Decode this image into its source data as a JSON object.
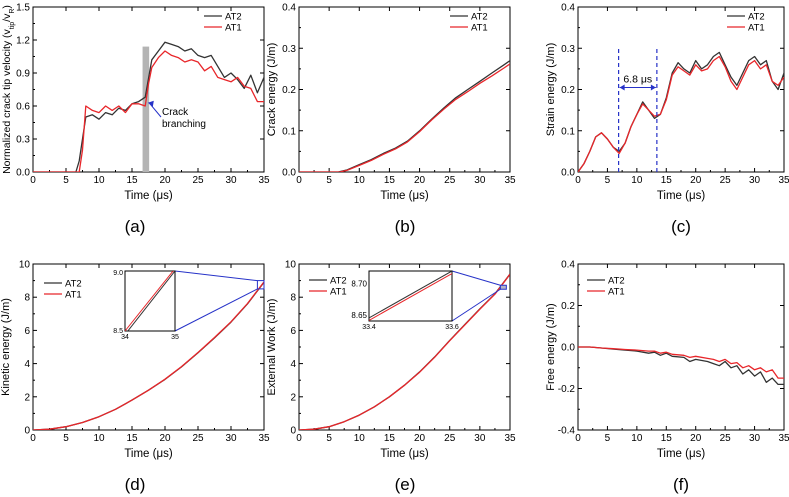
{
  "figure": {
    "colors": {
      "AT2": "#333333",
      "AT1": "#e8262a",
      "zoom_box": "#2632c8",
      "branch_bar": "#b4b4b4",
      "annotation": "#2632c8"
    },
    "series_names": [
      "AT2",
      "AT1"
    ]
  },
  "chart_data": [
    {
      "id": "a",
      "panel_label": "(a)",
      "type": "line",
      "xlabel": "Time (μs)",
      "ylabel": "Normalized crack tip velocity (v_tip/v_R)",
      "xlim": [
        0,
        35
      ],
      "ylim": [
        0,
        1.5
      ],
      "xticks": [
        0,
        5,
        10,
        15,
        20,
        25,
        30,
        35
      ],
      "yticks": [
        0,
        0.3,
        0.6,
        0.9,
        1.2,
        1.5
      ],
      "ytick_labels": [
        "0.0",
        "0.3",
        "0.6",
        "0.9",
        "1.2",
        "1.5"
      ],
      "legend": "top-right",
      "annotation": {
        "text_lines": [
          "Crack",
          "branching"
        ],
        "x_range": [
          16.6,
          17.6
        ],
        "bar_top": 1.14,
        "arrow_to": [
          17.4,
          0.63
        ]
      },
      "series": [
        {
          "name": "AT2",
          "x": [
            0,
            6.5,
            7.0,
            7.5,
            8,
            9,
            10,
            11,
            12,
            13,
            14,
            15,
            16,
            17,
            17.5,
            18,
            19,
            20,
            21,
            22,
            23,
            24,
            25,
            26,
            27,
            28,
            29,
            30,
            31,
            32,
            33,
            34,
            35
          ],
          "y": [
            0,
            0,
            0.1,
            0.3,
            0.5,
            0.52,
            0.48,
            0.54,
            0.52,
            0.58,
            0.56,
            0.62,
            0.64,
            0.68,
            0.85,
            1.02,
            1.1,
            1.18,
            1.16,
            1.14,
            1.1,
            1.12,
            1.06,
            1.04,
            1.06,
            0.96,
            0.86,
            0.9,
            0.84,
            0.76,
            0.88,
            0.72,
            0.86
          ]
        },
        {
          "name": "AT1",
          "x": [
            0,
            7.0,
            7.5,
            8,
            9,
            10,
            11,
            12,
            13,
            14,
            15,
            16,
            17,
            17.5,
            18,
            19,
            20,
            21,
            22,
            23,
            24,
            25,
            26,
            27,
            28,
            29,
            30,
            31,
            32,
            33,
            34,
            35
          ],
          "y": [
            0,
            0,
            0.2,
            0.6,
            0.56,
            0.54,
            0.6,
            0.56,
            0.6,
            0.54,
            0.62,
            0.62,
            0.6,
            0.8,
            0.95,
            1.04,
            1.1,
            1.06,
            1.04,
            1.0,
            1.02,
            1.0,
            0.92,
            0.96,
            0.86,
            0.84,
            0.82,
            0.86,
            0.78,
            0.76,
            0.64,
            0.64
          ]
        }
      ]
    },
    {
      "id": "b",
      "panel_label": "(b)",
      "type": "line",
      "xlabel": "Time (μs)",
      "ylabel": "Crack energy (J/m)",
      "xlim": [
        0,
        35
      ],
      "ylim": [
        0,
        0.4
      ],
      "xticks": [
        0,
        5,
        10,
        15,
        20,
        25,
        30,
        35
      ],
      "yticks": [
        0,
        0.1,
        0.2,
        0.3,
        0.4
      ],
      "ytick_labels": [
        "0.0",
        "0.1",
        "0.2",
        "0.3",
        "0.4"
      ],
      "legend": "top-right",
      "series": [
        {
          "name": "AT2",
          "x": [
            0,
            6.5,
            8,
            10,
            12,
            14,
            16,
            18,
            20,
            22,
            24,
            26,
            28,
            30,
            32,
            34,
            35
          ],
          "y": [
            0,
            0,
            0.005,
            0.018,
            0.03,
            0.045,
            0.058,
            0.075,
            0.1,
            0.128,
            0.155,
            0.18,
            0.2,
            0.22,
            0.24,
            0.26,
            0.27
          ]
        },
        {
          "name": "AT1",
          "x": [
            0,
            6.8,
            8,
            10,
            12,
            14,
            16,
            18,
            20,
            22,
            24,
            26,
            28,
            30,
            32,
            34,
            35
          ],
          "y": [
            0,
            0,
            0.004,
            0.016,
            0.028,
            0.043,
            0.056,
            0.073,
            0.098,
            0.126,
            0.152,
            0.176,
            0.195,
            0.215,
            0.233,
            0.252,
            0.262
          ]
        }
      ]
    },
    {
      "id": "c",
      "panel_label": "(c)",
      "type": "line",
      "xlabel": "Time (μs)",
      "ylabel": "Strain energy (J/m)",
      "xlim": [
        0,
        35
      ],
      "ylim": [
        0,
        0.4
      ],
      "xticks": [
        0,
        5,
        10,
        15,
        20,
        25,
        30,
        35
      ],
      "yticks": [
        0,
        0.1,
        0.2,
        0.3,
        0.4
      ],
      "ytick_labels": [
        "0.0",
        "0.1",
        "0.2",
        "0.3",
        "0.4"
      ],
      "legend": "top-right",
      "annotation": {
        "text": "6.8 μs",
        "x1": 6.9,
        "x2": 13.4,
        "y": 0.205
      },
      "series": [
        {
          "name": "AT2",
          "x": [
            0,
            1,
            2,
            3,
            4,
            5,
            6,
            7,
            8,
            9,
            10,
            11,
            12,
            13,
            14,
            15,
            16,
            17,
            18,
            19,
            20,
            21,
            22,
            23,
            24,
            25,
            26,
            27,
            28,
            29,
            30,
            31,
            32,
            33,
            34,
            35
          ],
          "y": [
            0,
            0.02,
            0.05,
            0.085,
            0.095,
            0.08,
            0.06,
            0.05,
            0.07,
            0.11,
            0.14,
            0.17,
            0.15,
            0.13,
            0.14,
            0.18,
            0.24,
            0.265,
            0.25,
            0.24,
            0.27,
            0.25,
            0.26,
            0.28,
            0.29,
            0.26,
            0.23,
            0.21,
            0.24,
            0.27,
            0.28,
            0.26,
            0.27,
            0.22,
            0.2,
            0.24
          ]
        },
        {
          "name": "AT1",
          "x": [
            0,
            1,
            2,
            3,
            4,
            5,
            6,
            7,
            8,
            9,
            10,
            11,
            12,
            13,
            14,
            15,
            16,
            17,
            18,
            19,
            20,
            21,
            22,
            23,
            24,
            25,
            26,
            27,
            28,
            29,
            30,
            31,
            32,
            33,
            34,
            35
          ],
          "y": [
            0,
            0.02,
            0.05,
            0.085,
            0.095,
            0.08,
            0.06,
            0.045,
            0.07,
            0.11,
            0.14,
            0.165,
            0.15,
            0.135,
            0.14,
            0.175,
            0.235,
            0.255,
            0.245,
            0.235,
            0.26,
            0.245,
            0.25,
            0.27,
            0.28,
            0.255,
            0.22,
            0.2,
            0.23,
            0.26,
            0.27,
            0.25,
            0.26,
            0.22,
            0.21,
            0.23
          ]
        }
      ]
    },
    {
      "id": "d",
      "panel_label": "(d)",
      "type": "line",
      "xlabel": "Time (μs)",
      "ylabel": "Kinetic energy (J/m)",
      "xlim": [
        0,
        35
      ],
      "ylim": [
        0,
        10
      ],
      "xticks": [
        0,
        5,
        10,
        15,
        20,
        25,
        30,
        35
      ],
      "yticks": [
        0,
        2,
        4,
        6,
        8,
        10
      ],
      "ytick_labels": [
        "0",
        "2",
        "4",
        "6",
        "8",
        "10"
      ],
      "legend": "top-left",
      "inset": {
        "xlim": [
          34,
          35
        ],
        "ylim": [
          8.5,
          9.0
        ],
        "xtick_labels": [
          "34",
          "35"
        ],
        "ytick_labels": [
          "8.5",
          "9.0"
        ],
        "series": [
          {
            "name": "AT2",
            "x": [
              34,
              35
            ],
            "y": [
              8.47,
              9.0
            ]
          },
          {
            "name": "AT1",
            "x": [
              34,
              35
            ],
            "y": [
              8.5,
              9.02
            ]
          }
        ]
      },
      "series": [
        {
          "name": "AT2",
          "x": [
            0,
            2.5,
            5,
            7.5,
            10,
            12.5,
            15,
            17.5,
            20,
            22.5,
            25,
            27.5,
            30,
            32.5,
            35
          ],
          "y": [
            0,
            0.05,
            0.2,
            0.45,
            0.8,
            1.25,
            1.8,
            2.4,
            3.05,
            3.8,
            4.65,
            5.55,
            6.5,
            7.6,
            8.9
          ]
        },
        {
          "name": "AT1",
          "x": [
            0,
            2.5,
            5,
            7.5,
            10,
            12.5,
            15,
            17.5,
            20,
            22.5,
            25,
            27.5,
            30,
            32.5,
            35
          ],
          "y": [
            0,
            0.05,
            0.2,
            0.45,
            0.8,
            1.25,
            1.8,
            2.4,
            3.06,
            3.82,
            4.67,
            5.57,
            6.52,
            7.62,
            8.92
          ]
        }
      ]
    },
    {
      "id": "e",
      "panel_label": "(e)",
      "type": "line",
      "xlabel": "Time (μs)",
      "ylabel": "External Work (J/m)",
      "xlim": [
        0,
        35
      ],
      "ylim": [
        0,
        10
      ],
      "xticks": [
        0,
        5,
        10,
        15,
        20,
        25,
        30,
        35
      ],
      "yticks": [
        0,
        2,
        4,
        6,
        8,
        10
      ],
      "ytick_labels": [
        "0",
        "2",
        "4",
        "6",
        "8",
        "10"
      ],
      "legend": "top-left",
      "inset": {
        "xlim": [
          33.4,
          33.6
        ],
        "ylim": [
          8.64,
          8.72
        ],
        "xtick_labels": [
          "33.4",
          "33.6"
        ],
        "ytick_labels": [
          "8.65",
          "8.70"
        ],
        "series": [
          {
            "name": "AT2",
            "x": [
              33.4,
              33.6
            ],
            "y": [
              8.645,
              8.72
            ]
          },
          {
            "name": "AT1",
            "x": [
              33.4,
              33.6
            ],
            "y": [
              8.641,
              8.716
            ]
          }
        ]
      },
      "series": [
        {
          "name": "AT2",
          "x": [
            0,
            2.5,
            5,
            7.5,
            10,
            12.5,
            15,
            17.5,
            20,
            22.5,
            25,
            27.5,
            30,
            32.5,
            35
          ],
          "y": [
            0,
            0.05,
            0.2,
            0.5,
            0.9,
            1.4,
            2.0,
            2.7,
            3.5,
            4.4,
            5.4,
            6.35,
            7.3,
            8.2,
            9.4
          ]
        },
        {
          "name": "AT1",
          "x": [
            0,
            2.5,
            5,
            7.5,
            10,
            12.5,
            15,
            17.5,
            20,
            22.5,
            25,
            27.5,
            30,
            32.5,
            35
          ],
          "y": [
            0,
            0.05,
            0.2,
            0.5,
            0.9,
            1.4,
            2.0,
            2.7,
            3.48,
            4.38,
            5.38,
            6.33,
            7.28,
            8.18,
            9.38
          ]
        }
      ]
    },
    {
      "id": "f",
      "panel_label": "(f)",
      "type": "line",
      "xlabel": "Time (μs)",
      "ylabel": "Free energy (J/m)",
      "xlim": [
        0,
        35
      ],
      "ylim": [
        -0.4,
        0.4
      ],
      "xticks": [
        0,
        5,
        10,
        15,
        20,
        25,
        30,
        35
      ],
      "yticks": [
        -0.4,
        -0.2,
        0,
        0.2,
        0.4
      ],
      "ytick_labels": [
        "-0.4",
        "-0.2",
        "0.0",
        "0.2",
        "0.4"
      ],
      "legend": "top-left",
      "series": [
        {
          "name": "AT2",
          "x": [
            0,
            2,
            4,
            6,
            8,
            10,
            12,
            13,
            14,
            15,
            16,
            18,
            19,
            20,
            22,
            23,
            24,
            25,
            26,
            27,
            28,
            29,
            30,
            31,
            32,
            33,
            34,
            35
          ],
          "y": [
            0,
            0,
            -0.005,
            -0.01,
            -0.015,
            -0.02,
            -0.03,
            -0.025,
            -0.04,
            -0.03,
            -0.045,
            -0.05,
            -0.07,
            -0.06,
            -0.07,
            -0.08,
            -0.09,
            -0.07,
            -0.1,
            -0.09,
            -0.13,
            -0.11,
            -0.14,
            -0.12,
            -0.17,
            -0.15,
            -0.18,
            -0.18
          ]
        },
        {
          "name": "AT1",
          "x": [
            0,
            2,
            4,
            6,
            8,
            10,
            12,
            13,
            14,
            15,
            16,
            18,
            19,
            20,
            22,
            23,
            24,
            25,
            26,
            27,
            28,
            29,
            30,
            31,
            32,
            33,
            34,
            35
          ],
          "y": [
            0,
            0,
            -0.005,
            -0.008,
            -0.012,
            -0.015,
            -0.02,
            -0.02,
            -0.03,
            -0.025,
            -0.035,
            -0.04,
            -0.05,
            -0.045,
            -0.055,
            -0.06,
            -0.07,
            -0.06,
            -0.08,
            -0.075,
            -0.1,
            -0.09,
            -0.11,
            -0.1,
            -0.12,
            -0.11,
            -0.15,
            -0.15
          ]
        }
      ]
    }
  ]
}
